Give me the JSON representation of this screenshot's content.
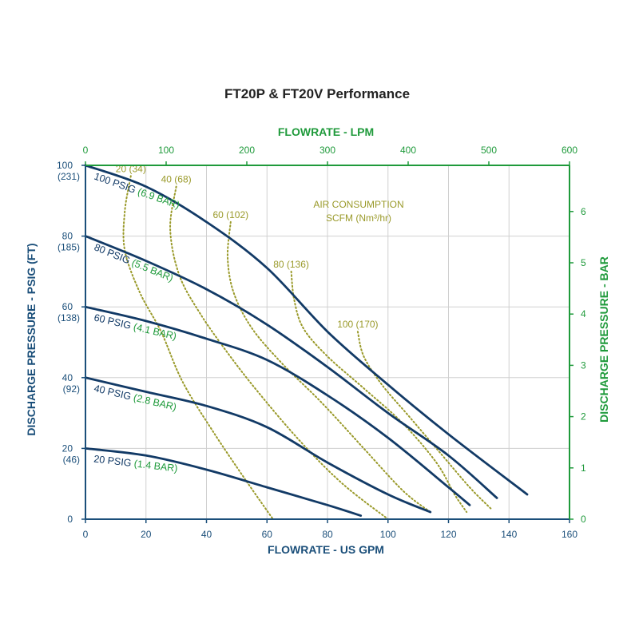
{
  "chart_data": {
    "type": "line",
    "title": "FT20P & FT20V Performance",
    "xlabel": "FLOWRATE - US GPM",
    "x2label": "FLOWRATE - LPM",
    "ylabel": "DISCHARGE PRESSURE - PSIG (FT)",
    "y2label": "DISCHARGE PRESSURE - BAR",
    "xlim": [
      0,
      160
    ],
    "ylim": [
      0,
      100
    ],
    "x2lim": [
      0,
      600
    ],
    "y2lim": [
      0,
      6.9
    ],
    "grid": true,
    "x_ticks": [
      "0",
      "20",
      "40",
      "60",
      "80",
      "100",
      "120",
      "140",
      "160"
    ],
    "x2_ticks": [
      "0",
      "100",
      "200",
      "300",
      "400",
      "500",
      "600"
    ],
    "y_ticks": [
      {
        "value": 0,
        "label": "0",
        "sub": ""
      },
      {
        "value": 20,
        "label": "20",
        "sub": "(46)"
      },
      {
        "value": 40,
        "label": "40",
        "sub": "(92)"
      },
      {
        "value": 60,
        "label": "60",
        "sub": "(138)"
      },
      {
        "value": 80,
        "label": "80",
        "sub": "(185)"
      },
      {
        "value": 100,
        "label": "100",
        "sub": "(231)"
      }
    ],
    "y2_ticks": [
      "0",
      "1",
      "2",
      "3",
      "4",
      "5",
      "6"
    ],
    "colors": {
      "axis_primary": "#1b4f7a",
      "axis_secondary": "#1f9a3b",
      "curve": "#123a66",
      "air": "#9a9a2a",
      "title": "#222222",
      "grid": "#d0d0d0"
    },
    "series": [
      {
        "label": "100 PSIG",
        "label_bar": "(6.9 BAR)",
        "x": [
          0,
          20,
          40,
          60,
          80,
          100,
          120,
          146
        ],
        "y": [
          100,
          94,
          84,
          71,
          53,
          38,
          24,
          7
        ]
      },
      {
        "label": "80 PSIG",
        "label_bar": "(5.5 BAR)",
        "x": [
          0,
          20,
          40,
          60,
          80,
          100,
          120,
          136
        ],
        "y": [
          80,
          73,
          65,
          55,
          43,
          30,
          18,
          6
        ]
      },
      {
        "label": "60 PSIG",
        "label_bar": "(4.1 BAR)",
        "x": [
          0,
          20,
          40,
          60,
          80,
          100,
          120,
          127
        ],
        "y": [
          60,
          56,
          51,
          45,
          35,
          23,
          9,
          4
        ]
      },
      {
        "label": "40 PSIG",
        "label_bar": "(2.8 BAR)",
        "x": [
          0,
          20,
          40,
          60,
          80,
          100,
          114
        ],
        "y": [
          40,
          36,
          32,
          26,
          16,
          7,
          2
        ]
      },
      {
        "label": "20 PSIG",
        "label_bar": "(1.4 BAR)",
        "x": [
          0,
          20,
          40,
          60,
          80,
          91
        ],
        "y": [
          20,
          18,
          14,
          9,
          4,
          1
        ]
      }
    ],
    "air_consumption": {
      "label_line1": "AIR CONSUMPTION",
      "label_line2": "SCFM (Nm³/hr)",
      "lines": [
        {
          "label": "20 (34)",
          "x": [
            15,
            13,
            13,
            18,
            25,
            32,
            42,
            53,
            62
          ],
          "y": [
            97,
            87,
            76,
            64,
            53,
            39,
            25,
            11,
            0
          ]
        },
        {
          "label": "40 (68)",
          "x": [
            30,
            28,
            31,
            38,
            47,
            57,
            71,
            85,
            100
          ],
          "y": [
            94,
            82,
            69,
            58,
            47,
            36,
            22,
            10,
            0
          ]
        },
        {
          "label": "60 (102)",
          "x": [
            48,
            47,
            49,
            55,
            65,
            78,
            92,
            105,
            114
          ],
          "y": [
            84,
            74,
            64,
            54,
            44,
            33,
            20,
            8,
            2
          ]
        },
        {
          "label": "80 (136)",
          "x": [
            68,
            69,
            72,
            80,
            92,
            105,
            116,
            122,
            126
          ],
          "y": [
            70,
            62,
            54,
            46,
            37,
            27,
            16,
            7,
            2
          ]
        },
        {
          "label": "100 (170)",
          "x": [
            90,
            92,
            98,
            107,
            117,
            127,
            134
          ],
          "y": [
            53,
            46,
            38,
            29,
            19,
            9,
            3
          ]
        }
      ]
    }
  }
}
